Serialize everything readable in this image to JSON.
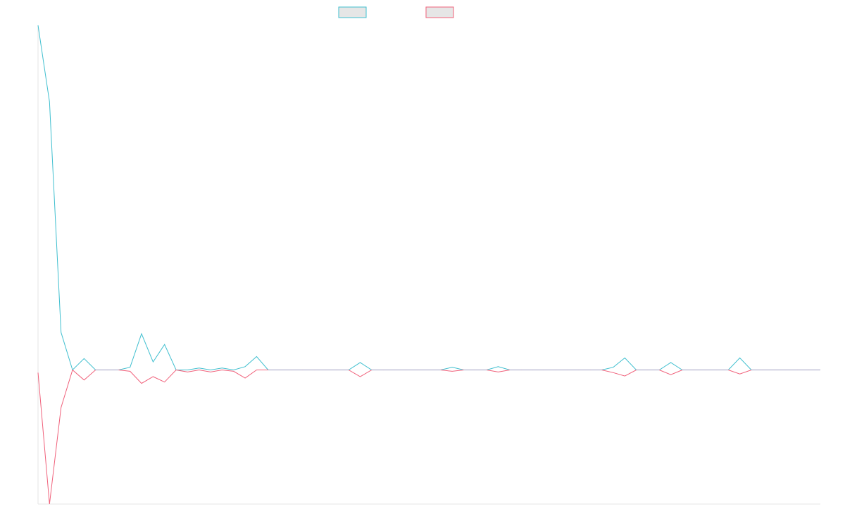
{
  "chart_data": {
    "type": "line",
    "title": "",
    "xlabel": "",
    "ylabel": "",
    "grid": false,
    "legend": "top-center",
    "colors": {
      "cyan": "#3fbfcf",
      "pink": "#f0607a",
      "flat": "#9a9abf",
      "axis": "#e6e6e6",
      "legend_fill": "#e6e6e6"
    },
    "x": [
      0,
      1,
      2,
      3,
      4,
      5,
      6,
      7,
      8,
      9,
      10,
      11,
      12,
      13,
      14,
      15,
      16,
      17,
      18,
      19,
      20,
      21,
      22,
      23,
      24,
      25,
      26,
      27,
      28,
      29,
      30,
      31,
      32,
      33,
      34,
      35,
      36,
      37,
      38,
      39,
      40,
      41,
      42,
      43,
      44,
      45,
      46,
      47,
      48,
      49,
      50,
      51,
      52,
      53,
      54,
      55,
      56,
      57,
      58,
      59,
      60,
      61,
      62,
      63,
      64,
      65,
      66,
      67,
      68
    ],
    "xlim": [
      0,
      68
    ],
    "ylim": [
      -10,
      25.7
    ],
    "series": [
      {
        "color": "#3fbfcf",
        "values": [
          25.7,
          20,
          2.8,
          0,
          0.85,
          0,
          0,
          0,
          0.2,
          2.7,
          0.6,
          1.9,
          0,
          0,
          0.15,
          0,
          0.15,
          0,
          0.25,
          1,
          0,
          0,
          0,
          0,
          0,
          0,
          0,
          0,
          0.55,
          0,
          0,
          0,
          0,
          0,
          0,
          0,
          0.2,
          0,
          0,
          0,
          0.25,
          0,
          0,
          0,
          0,
          0,
          0,
          0,
          0,
          0,
          0.2,
          0.9,
          0,
          0,
          0,
          0.55,
          0,
          0,
          0,
          0,
          0,
          0.9,
          0,
          0,
          0,
          0,
          0,
          0,
          0
        ]
      },
      {
        "color": "#f0607a",
        "values": [
          -0.2,
          -10,
          -2.8,
          0,
          -0.75,
          0,
          0,
          0,
          -0.1,
          -1,
          -0.5,
          -0.9,
          0,
          -0.15,
          0,
          -0.15,
          0,
          -0.1,
          -0.6,
          0,
          0,
          0,
          0,
          0,
          0,
          0,
          0,
          0,
          -0.5,
          0,
          0,
          0,
          0,
          0,
          0,
          0,
          -0.1,
          0,
          0,
          0,
          -0.15,
          0,
          0,
          0,
          0,
          0,
          0,
          0,
          0,
          0,
          -0.2,
          -0.45,
          0,
          0,
          0,
          -0.35,
          0,
          0,
          0,
          0,
          0,
          -0.3,
          0,
          0,
          0,
          0,
          0,
          0,
          0
        ]
      }
    ]
  }
}
